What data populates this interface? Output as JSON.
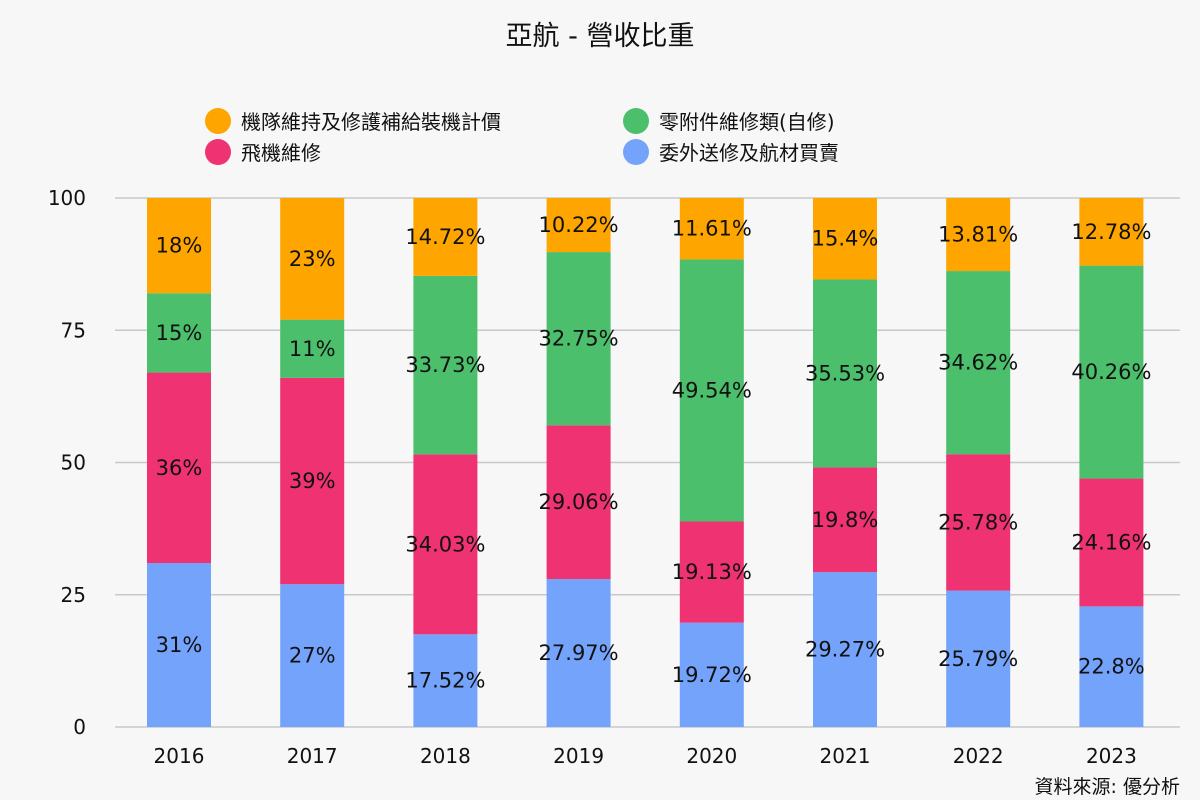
{
  "chart_data": {
    "type": "bar",
    "stacked": true,
    "title": "亞航 - 營收比重",
    "categories": [
      "2016",
      "2017",
      "2018",
      "2019",
      "2020",
      "2021",
      "2022",
      "2023"
    ],
    "ylim": [
      0,
      100
    ],
    "yticks": [
      "0",
      "25",
      "50",
      "75",
      "100"
    ],
    "grid": true,
    "legend_position": "top",
    "series": [
      {
        "name": "委外送修及航材買賣",
        "color": "#74a3fc",
        "values": [
          31,
          27,
          17.52,
          27.97,
          19.72,
          29.27,
          25.79,
          22.8
        ],
        "labels": [
          "31%",
          "27%",
          "17.52%",
          "27.97%",
          "19.72%",
          "29.27%",
          "25.79%",
          "22.8%"
        ]
      },
      {
        "name": "飛機維修",
        "color": "#ee3272",
        "values": [
          36,
          39,
          34.03,
          29.06,
          19.13,
          19.8,
          25.78,
          24.16
        ],
        "labels": [
          "36%",
          "39%",
          "34.03%",
          "29.06%",
          "19.13%",
          "19.8%",
          "25.78%",
          "24.16%"
        ]
      },
      {
        "name": "零附件維修類(自修)",
        "color": "#4bbf6b",
        "values": [
          15,
          11,
          33.73,
          32.75,
          49.54,
          35.53,
          34.62,
          40.26
        ],
        "labels": [
          "15%",
          "11%",
          "33.73%",
          "32.75%",
          "49.54%",
          "35.53%",
          "34.62%",
          "40.26%"
        ]
      },
      {
        "name": "機隊維持及修護補給裝機計價",
        "color": "#fea500",
        "values": [
          18,
          23,
          14.72,
          10.22,
          11.61,
          15.4,
          13.81,
          12.78
        ],
        "labels": [
          "18%",
          "23%",
          "14.72%",
          "10.22%",
          "11.61%",
          "15.4%",
          "13.81%",
          "12.78%"
        ]
      }
    ],
    "legend": [
      {
        "series": 3,
        "name": "機隊維持及修護補給裝機計價"
      },
      {
        "series": 2,
        "name": "零附件維修類(自修)"
      },
      {
        "series": 1,
        "name": "飛機維修"
      },
      {
        "series": 0,
        "name": "委外送修及航材買賣"
      }
    ],
    "source": "資料來源: 優分析"
  }
}
